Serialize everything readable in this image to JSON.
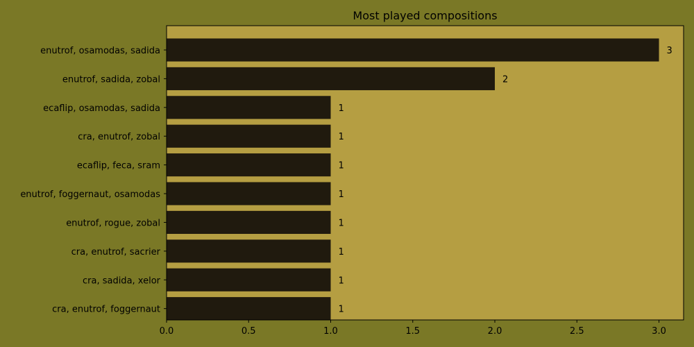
{
  "colors": {
    "figure_background": "#7a7826",
    "plot_background": "#b59e42",
    "bar": "#201a0e",
    "axis": "#000000",
    "text": "#000000"
  },
  "chart_data": {
    "type": "bar",
    "orientation": "horizontal",
    "title": "Most played compositions",
    "xlabel": "",
    "ylabel": "",
    "categories": [
      "enutrof, osamodas, sadida",
      "enutrof, sadida, zobal",
      "ecaflip, osamodas, sadida",
      "cra, enutrof, zobal",
      "ecaflip, feca, sram",
      "enutrof, foggernaut, osamodas",
      "enutrof, rogue, zobal",
      "cra, enutrof, sacrier",
      "cra, sadida, xelor",
      "cra, enutrof, foggernaut"
    ],
    "values": [
      3,
      2,
      1,
      1,
      1,
      1,
      1,
      1,
      1,
      1
    ],
    "data_labels": [
      "3",
      "2",
      "1",
      "1",
      "1",
      "1",
      "1",
      "1",
      "1",
      "1"
    ],
    "xlim": [
      0,
      3.15
    ],
    "xticks": [
      0,
      0.5,
      1,
      1.5,
      2,
      2.5,
      3
    ],
    "xtick_labels": [
      "0.0",
      "0.5",
      "1.0",
      "1.5",
      "2.0",
      "2.5",
      "3.0"
    ],
    "grid": false,
    "legend": null
  }
}
